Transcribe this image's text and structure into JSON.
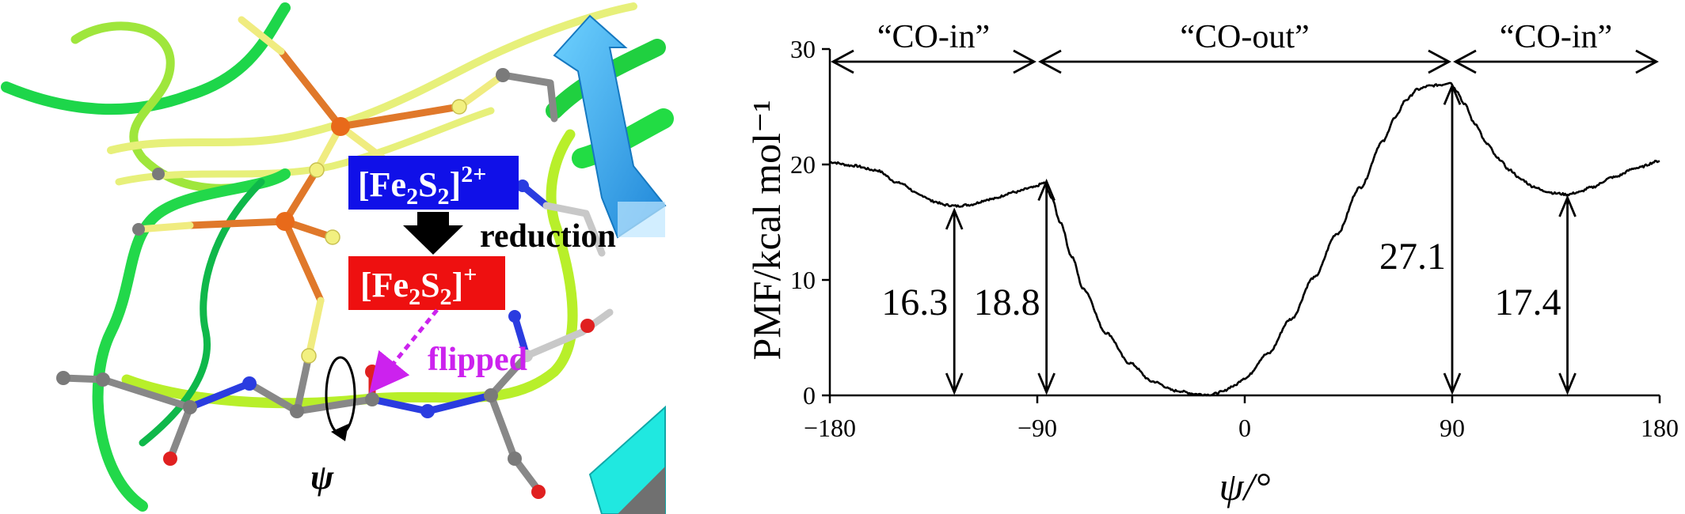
{
  "molecule_panel": {
    "state_oxidized_prefix": "[Fe",
    "state_oxidized_sub1": "2",
    "state_oxidized_mid": "S",
    "state_oxidized_sub2": "2",
    "state_oxidized_suffix": "]",
    "state_oxidized_charge": "2+",
    "state_reduced_prefix": "[Fe",
    "state_reduced_sub1": "2",
    "state_reduced_mid": "S",
    "state_reduced_sub2": "2",
    "state_reduced_suffix": "]",
    "state_reduced_charge": "+",
    "reduction_label": "reduction",
    "flipped_label": "flipped",
    "psi_label": "ψ",
    "colors": {
      "oxidized_box": "#1010e8",
      "reduced_box": "#ee1010",
      "flipped": "#cc22ee",
      "iron": "#e86a1a",
      "sulfur": "#f2f080",
      "carbon": "#808080",
      "nitrogen": "#2a3ce0",
      "oxygen": "#e02020",
      "ribbon_green": "#22d84a",
      "ribbon_yellow": "#d8f040",
      "strand_blue": "#2ab0f0",
      "helix_cyan": "#20e8e0"
    }
  },
  "chart_data": {
    "type": "line",
    "xlabel": "ψ/°",
    "ylabel": "PMF/kcal mol⁻¹",
    "xlim": [
      -180,
      180
    ],
    "ylim": [
      0,
      30
    ],
    "x_ticks": [
      -180,
      -90,
      0,
      90,
      180
    ],
    "x_tick_labels": [
      "−180",
      "−90",
      "0",
      "90",
      "180"
    ],
    "y_ticks": [
      0,
      10,
      20,
      30
    ],
    "y_tick_labels": [
      "0",
      "10",
      "20",
      "30"
    ],
    "grid": false,
    "series": [
      {
        "x": [
          -180,
          -170,
          -160,
          -150,
          -140,
          -135,
          -130,
          -125,
          -120,
          -110,
          -100,
          -92,
          -87,
          -84,
          -80,
          -75,
          -70,
          -60,
          -50,
          -40,
          -30,
          -20,
          -15,
          -10,
          -5,
          0,
          10,
          20,
          30,
          40,
          50,
          60,
          65,
          70,
          75,
          80,
          85,
          89,
          92,
          95,
          100,
          105,
          110,
          115,
          120,
          125,
          130,
          135,
          140,
          145,
          150,
          160,
          170,
          180
        ],
        "y": [
          20.2,
          19.9,
          19.5,
          18.4,
          17.3,
          16.8,
          16.5,
          16.4,
          16.5,
          17.0,
          17.6,
          18.0,
          18.4,
          17.2,
          15.0,
          12.0,
          9.2,
          5.4,
          2.8,
          1.2,
          0.4,
          0.1,
          0.05,
          0.3,
          0.8,
          1.5,
          3.6,
          6.6,
          10.2,
          14.0,
          18.0,
          22.0,
          24.0,
          25.6,
          26.5,
          26.8,
          26.9,
          27.1,
          26.4,
          25.3,
          23.5,
          21.8,
          20.5,
          19.5,
          18.7,
          18.1,
          17.7,
          17.5,
          17.4,
          17.6,
          18.0,
          18.9,
          19.7,
          20.3
        ]
      }
    ],
    "regions": [
      {
        "label": "“CO-in”",
        "from": -180,
        "to": -90
      },
      {
        "label": "“CO-out”",
        "from": -90,
        "to": 90
      },
      {
        "label": "“CO-in”",
        "from": 90,
        "to": 180
      }
    ],
    "barriers": [
      {
        "x": -126,
        "value": 16.3,
        "label": "16.3"
      },
      {
        "x": -86,
        "value": 18.8,
        "label": "18.8"
      },
      {
        "x": 90,
        "value": 27.1,
        "label": "27.1"
      },
      {
        "x": 140,
        "value": 17.4,
        "label": "17.4"
      }
    ]
  }
}
